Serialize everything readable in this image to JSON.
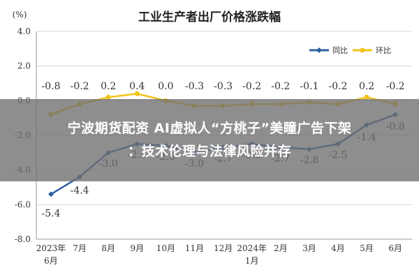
{
  "chart_data": {
    "type": "line",
    "title": "工业生产者出厂价格涨跌幅",
    "yunit": "(%)",
    "ylim": [
      -8.0,
      4.0
    ],
    "yticks": [
      "4.0",
      "2.0",
      "0.0",
      "-2.0",
      "-4.0",
      "-6.0",
      "-8.0"
    ],
    "grid": true,
    "legend_position": "top-right",
    "categories": [
      {
        "line1": "2023年",
        "line2": "6月"
      },
      {
        "line1": "7月",
        "line2": ""
      },
      {
        "line1": "8月",
        "line2": ""
      },
      {
        "line1": "9月",
        "line2": ""
      },
      {
        "line1": "10月",
        "line2": ""
      },
      {
        "line1": "11月",
        "line2": ""
      },
      {
        "line1": "12月",
        "line2": ""
      },
      {
        "line1": "2024年",
        "line2": "1月"
      },
      {
        "line1": "2月",
        "line2": ""
      },
      {
        "line1": "3月",
        "line2": ""
      },
      {
        "line1": "4月",
        "line2": ""
      },
      {
        "line1": "5月",
        "line2": ""
      },
      {
        "line1": "6月",
        "line2": ""
      }
    ],
    "series": [
      {
        "name": "同比",
        "color": "#2e5fa3",
        "values": [
          -5.4,
          -4.4,
          -3.0,
          -2.5,
          -2.6,
          -3.0,
          -2.7,
          -2.5,
          -2.7,
          -2.8,
          -2.5,
          -1.4,
          -0.8
        ],
        "labels": [
          "-5.4",
          "-4.4",
          "-3.0",
          "-2.5",
          "-2.6",
          "-3.0",
          "-2.7",
          "-2.5",
          "-2.7",
          "-2.8",
          "-2.5",
          "-1.4",
          "-0.8"
        ]
      },
      {
        "name": "环比",
        "color": "#f2c318",
        "values": [
          -0.8,
          -0.2,
          0.2,
          0.4,
          0.0,
          -0.3,
          -0.3,
          -0.2,
          -0.2,
          -0.1,
          -0.2,
          0.2,
          -0.2
        ],
        "labels": [
          "-0.8",
          "-0.2",
          "0.2",
          "0.4",
          "0.0",
          "-0.3",
          "-0.3",
          "-0.2",
          "-0.2",
          "-0.1",
          "-0.2",
          "0.2",
          "-0.2"
        ]
      }
    ],
    "axis_color": "#999999",
    "grid_color": "#d9d9d9"
  },
  "overlay": {
    "line1": "宁波期货配资 AI虚拟人“方桃子”美瞳广告下架",
    "line2": "：技术伦理与法律风险并存"
  }
}
